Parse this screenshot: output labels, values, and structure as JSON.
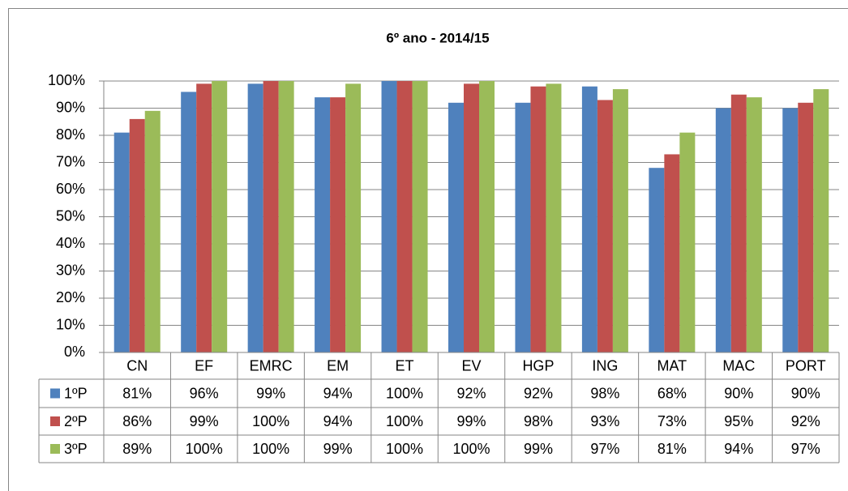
{
  "chart_data": {
    "type": "bar",
    "title": "6º ano - 2014/15",
    "categories": [
      "CN",
      "EF",
      "EMRC",
      "EM",
      "ET",
      "EV",
      "HGP",
      "ING",
      "MAT",
      "MAC",
      "PORT"
    ],
    "series": [
      {
        "name": "1ºP",
        "color": "#4f81bd",
        "values": [
          81,
          96,
          99,
          94,
          100,
          92,
          92,
          98,
          68,
          90,
          90
        ],
        "value_labels": [
          "81%",
          "96%",
          "99%",
          "94%",
          "100%",
          "92%",
          "92%",
          "98%",
          "68%",
          "90%",
          "90%"
        ]
      },
      {
        "name": "2ºP",
        "color": "#c0504d",
        "values": [
          86,
          99,
          100,
          94,
          100,
          99,
          98,
          93,
          73,
          95,
          92
        ],
        "value_labels": [
          "86%",
          "99%",
          "100%",
          "94%",
          "100%",
          "99%",
          "98%",
          "93%",
          "73%",
          "95%",
          "92%"
        ]
      },
      {
        "name": "3ºP",
        "color": "#9bbb59",
        "values": [
          89,
          100,
          100,
          99,
          100,
          100,
          99,
          97,
          81,
          94,
          97
        ],
        "value_labels": [
          "89%",
          "100%",
          "100%",
          "99%",
          "100%",
          "100%",
          "99%",
          "97%",
          "81%",
          "94%",
          "97%"
        ]
      }
    ],
    "ylim": [
      0,
      100
    ],
    "yticks": [
      {
        "value": 0,
        "label": "0%"
      },
      {
        "value": 10,
        "label": "10%"
      },
      {
        "value": 20,
        "label": "20%"
      },
      {
        "value": 30,
        "label": "30%"
      },
      {
        "value": 40,
        "label": "40%"
      },
      {
        "value": 50,
        "label": "50%"
      },
      {
        "value": 60,
        "label": "60%"
      },
      {
        "value": 70,
        "label": "70%"
      },
      {
        "value": 80,
        "label": "80%"
      },
      {
        "value": 90,
        "label": "90%"
      },
      {
        "value": 100,
        "label": "100%"
      }
    ],
    "grid": true
  }
}
